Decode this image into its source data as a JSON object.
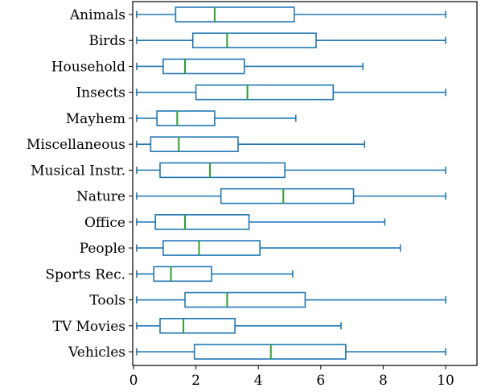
{
  "chart_data": {
    "type": "boxplot",
    "orientation": "horizontal",
    "xlim": [
      0,
      11
    ],
    "x_ticks": [
      0,
      2,
      4,
      6,
      8,
      10
    ],
    "x_tick_labels": [
      "0",
      "2",
      "4",
      "6",
      "8",
      "10"
    ],
    "grid": false,
    "box_color": "#1f77b4",
    "median_color": "#2ca02c",
    "categories": [
      "Animals",
      "Birds",
      "Household",
      "Insects",
      "Mayhem",
      "Miscellaneous",
      "Musical Instr.",
      "Nature",
      "Office",
      "People",
      "Sports Rec.",
      "Tools",
      "TV Movies",
      "Vehicles"
    ],
    "boxes": [
      {
        "min": 0.1,
        "q1": 1.35,
        "median": 2.6,
        "q3": 5.15,
        "max": 10.0
      },
      {
        "min": 0.1,
        "q1": 1.9,
        "median": 3.0,
        "q3": 5.85,
        "max": 10.0
      },
      {
        "min": 0.1,
        "q1": 0.95,
        "median": 1.65,
        "q3": 3.55,
        "max": 7.35
      },
      {
        "min": 0.1,
        "q1": 2.0,
        "median": 3.65,
        "q3": 6.4,
        "max": 10.0
      },
      {
        "min": 0.1,
        "q1": 0.75,
        "median": 1.4,
        "q3": 2.6,
        "max": 5.2
      },
      {
        "min": 0.1,
        "q1": 0.55,
        "median": 1.45,
        "q3": 3.35,
        "max": 7.4
      },
      {
        "min": 0.1,
        "q1": 0.85,
        "median": 2.45,
        "q3": 4.85,
        "max": 10.0
      },
      {
        "min": 0.1,
        "q1": 2.8,
        "median": 4.8,
        "q3": 7.05,
        "max": 10.0
      },
      {
        "min": 0.1,
        "q1": 0.7,
        "median": 1.65,
        "q3": 3.7,
        "max": 8.05
      },
      {
        "min": 0.1,
        "q1": 0.95,
        "median": 2.1,
        "q3": 4.05,
        "max": 8.55
      },
      {
        "min": 0.1,
        "q1": 0.65,
        "median": 1.2,
        "q3": 2.5,
        "max": 5.1
      },
      {
        "min": 0.1,
        "q1": 1.65,
        "median": 3.0,
        "q3": 5.5,
        "max": 10.0
      },
      {
        "min": 0.1,
        "q1": 0.85,
        "median": 1.6,
        "q3": 3.25,
        "max": 6.65
      },
      {
        "min": 0.1,
        "q1": 1.95,
        "median": 4.4,
        "q3": 6.8,
        "max": 10.0
      }
    ]
  }
}
